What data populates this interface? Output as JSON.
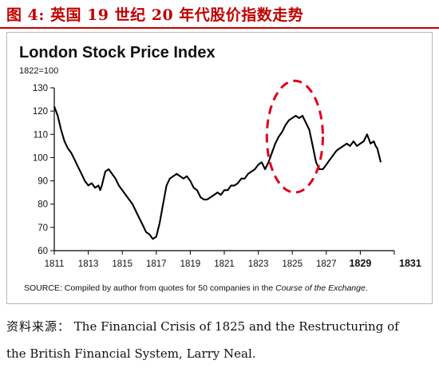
{
  "figure": {
    "title": "图 4:  英国 19 世纪 20 年代股价指数走势"
  },
  "source_note": {
    "prefix": "资料来源：",
    "line1": "   The Financial Crisis of 1825 and the Restructuring of",
    "line2": "the British Financial System, Larry Neal."
  },
  "colors": {
    "title_red": "#c00000",
    "line": "#000000",
    "highlight_ellipse": "#e0001b"
  },
  "chart_data": {
    "type": "line",
    "title": "London Stock Price Index",
    "ylabel": "1822=100",
    "xlabel": "",
    "xlim": [
      1811,
      1831
    ],
    "ylim": [
      60,
      130
    ],
    "yticks": [
      60,
      70,
      80,
      90,
      100,
      110,
      120,
      130
    ],
    "xticks": [
      "1811",
      "1813",
      "1815",
      "1817",
      "1819",
      "1821",
      "1823",
      "1825",
      "1827",
      "1829",
      "1831"
    ],
    "bold_xticks": [
      "1829",
      "1831"
    ],
    "source_text": "SOURCE: Compiled by author from quotes for 50 companies in the ",
    "source_italic": "Course of the Exchange",
    "source_end": ".",
    "highlight": "dashed ellipse around 1825 peak",
    "series": [
      {
        "values": [
          [
            1811.0,
            122
          ],
          [
            1811.2,
            118
          ],
          [
            1811.4,
            112
          ],
          [
            1811.6,
            107
          ],
          [
            1811.8,
            104
          ],
          [
            1812.0,
            102
          ],
          [
            1812.2,
            99
          ],
          [
            1812.4,
            96
          ],
          [
            1812.6,
            93
          ],
          [
            1812.8,
            90
          ],
          [
            1813.0,
            88
          ],
          [
            1813.2,
            89
          ],
          [
            1813.4,
            87
          ],
          [
            1813.6,
            88
          ],
          [
            1813.7,
            86
          ],
          [
            1813.8,
            88
          ],
          [
            1814.0,
            94
          ],
          [
            1814.2,
            95
          ],
          [
            1814.4,
            93
          ],
          [
            1814.6,
            91
          ],
          [
            1814.8,
            88
          ],
          [
            1815.0,
            86
          ],
          [
            1815.2,
            84
          ],
          [
            1815.4,
            82
          ],
          [
            1815.6,
            80
          ],
          [
            1815.8,
            77
          ],
          [
            1816.0,
            74
          ],
          [
            1816.2,
            71
          ],
          [
            1816.4,
            68
          ],
          [
            1816.6,
            67
          ],
          [
            1816.8,
            65
          ],
          [
            1817.0,
            66
          ],
          [
            1817.2,
            72
          ],
          [
            1817.4,
            80
          ],
          [
            1817.6,
            88
          ],
          [
            1817.8,
            91
          ],
          [
            1818.0,
            92
          ],
          [
            1818.2,
            93
          ],
          [
            1818.4,
            92
          ],
          [
            1818.6,
            91
          ],
          [
            1818.8,
            92
          ],
          [
            1819.0,
            90
          ],
          [
            1819.2,
            87
          ],
          [
            1819.4,
            86
          ],
          [
            1819.6,
            83
          ],
          [
            1819.8,
            82
          ],
          [
            1820.0,
            82
          ],
          [
            1820.2,
            83
          ],
          [
            1820.4,
            84
          ],
          [
            1820.6,
            85
          ],
          [
            1820.8,
            84
          ],
          [
            1821.0,
            86
          ],
          [
            1821.2,
            86
          ],
          [
            1821.4,
            88
          ],
          [
            1821.6,
            88
          ],
          [
            1821.8,
            89
          ],
          [
            1822.0,
            91
          ],
          [
            1822.2,
            91
          ],
          [
            1822.4,
            93
          ],
          [
            1822.6,
            94
          ],
          [
            1822.8,
            95
          ],
          [
            1823.0,
            97
          ],
          [
            1823.2,
            98
          ],
          [
            1823.4,
            95
          ],
          [
            1823.6,
            98
          ],
          [
            1823.8,
            102
          ],
          [
            1824.0,
            106
          ],
          [
            1824.2,
            109
          ],
          [
            1824.4,
            111
          ],
          [
            1824.6,
            114
          ],
          [
            1824.8,
            116
          ],
          [
            1825.0,
            117
          ],
          [
            1825.2,
            118
          ],
          [
            1825.4,
            117
          ],
          [
            1825.6,
            118
          ],
          [
            1825.8,
            115
          ],
          [
            1826.0,
            112
          ],
          [
            1826.2,
            105
          ],
          [
            1826.4,
            98
          ],
          [
            1826.6,
            95
          ],
          [
            1826.8,
            95
          ],
          [
            1827.0,
            97
          ],
          [
            1827.2,
            99
          ],
          [
            1827.4,
            101
          ],
          [
            1827.6,
            103
          ],
          [
            1827.8,
            104
          ],
          [
            1828.0,
            105
          ],
          [
            1828.2,
            106
          ],
          [
            1828.4,
            105
          ],
          [
            1828.6,
            107
          ],
          [
            1828.8,
            105
          ],
          [
            1829.0,
            106
          ],
          [
            1829.2,
            107
          ],
          [
            1829.4,
            110
          ],
          [
            1829.5,
            108
          ],
          [
            1829.6,
            106
          ],
          [
            1829.8,
            107
          ],
          [
            1829.9,
            105
          ],
          [
            1830.0,
            104
          ],
          [
            1830.2,
            98
          ]
        ]
      }
    ]
  }
}
